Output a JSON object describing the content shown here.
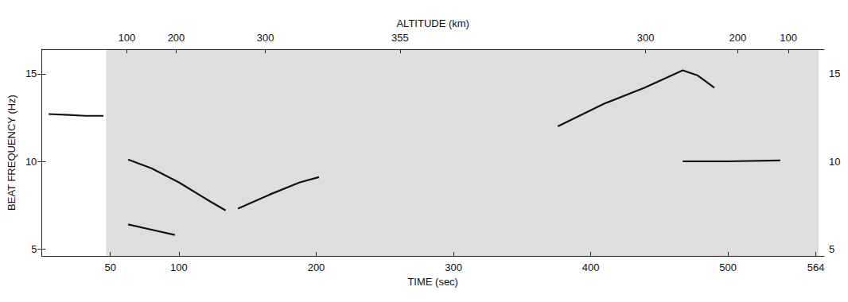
{
  "chart_data": {
    "type": "line",
    "xlabel": "TIME (sec)",
    "ylabel": "BEAT FREQUENCY (Hz)",
    "x2label": "ALTITUDE (km)",
    "xlim": [
      0,
      570
    ],
    "xticks": [
      50,
      100,
      200,
      300,
      400,
      500,
      564
    ],
    "ylim": [
      4.6,
      16.4
    ],
    "yticks": [
      5,
      10,
      15
    ],
    "y2lim": [
      4.6,
      16.4
    ],
    "y2ticks": [
      5,
      10,
      15
    ],
    "x2ticks": [
      {
        "value": 62,
        "label": "100"
      },
      {
        "value": 98,
        "label": "200"
      },
      {
        "value": 163,
        "label": "300"
      },
      {
        "value": 261,
        "label": "355"
      },
      {
        "value": 440,
        "label": "300"
      },
      {
        "value": 507,
        "label": "200"
      },
      {
        "value": 544,
        "label": "100"
      }
    ],
    "record_span": [
      47,
      566
    ],
    "grid": false,
    "color": "#111111",
    "series": [
      {
        "color": "#111111",
        "line_style": "solid",
        "values": [
          [
            5,
            12.7
          ],
          [
            20,
            12.65
          ],
          [
            32,
            12.6
          ],
          [
            45,
            12.6
          ]
        ]
      },
      {
        "color": "#111111",
        "line_style": "solid",
        "values": [
          [
            63,
            10.1
          ],
          [
            80,
            9.6
          ],
          [
            100,
            8.8
          ],
          [
            123,
            7.7
          ],
          [
            134,
            7.2
          ]
        ]
      },
      {
        "color": "#111111",
        "line_style": "solid",
        "values": [
          [
            143,
            7.3
          ],
          [
            166,
            8.1
          ],
          [
            188,
            8.8
          ],
          [
            202,
            9.1
          ]
        ]
      },
      {
        "color": "#111111",
        "line_style": "solid",
        "values": [
          [
            63,
            6.4
          ],
          [
            80,
            6.1
          ],
          [
            97,
            5.8
          ]
        ]
      },
      {
        "color": "#111111",
        "line_style": "solid",
        "values": [
          [
            376,
            12.0
          ],
          [
            410,
            13.3
          ],
          [
            439,
            14.2
          ],
          [
            467,
            15.2
          ],
          [
            478,
            14.9
          ],
          [
            490,
            14.2
          ]
        ]
      },
      {
        "color": "#111111",
        "line_style": "solid",
        "values": [
          [
            467,
            10.0
          ],
          [
            500,
            10.0
          ],
          [
            538,
            10.05
          ]
        ]
      }
    ]
  }
}
